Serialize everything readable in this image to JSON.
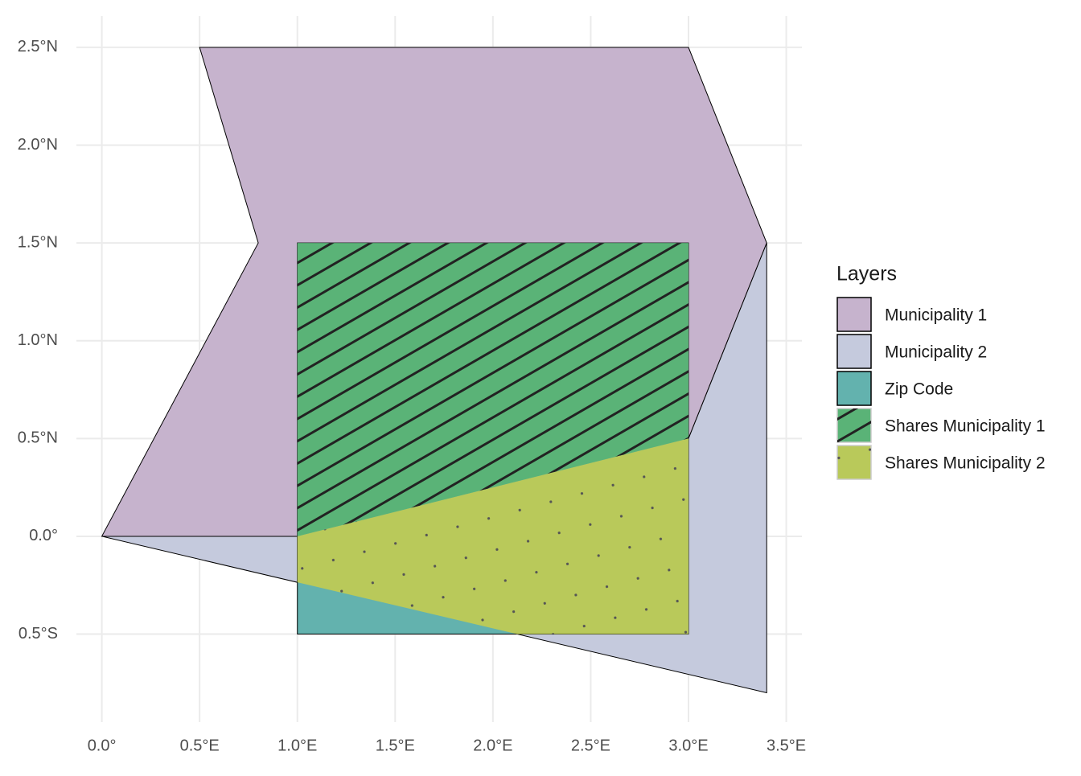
{
  "chart_data": {
    "type": "map",
    "xlim": [
      -0.13,
      3.58
    ],
    "ylim": [
      -0.95,
      2.66
    ],
    "xticks": [
      {
        "value": 0,
        "label": "0.0°"
      },
      {
        "value": 0.5,
        "label": "0.5°E"
      },
      {
        "value": 1,
        "label": "1.0°E"
      },
      {
        "value": 1.5,
        "label": "1.5°E"
      },
      {
        "value": 2,
        "label": "2.0°E"
      },
      {
        "value": 2.5,
        "label": "2.5°E"
      },
      {
        "value": 3,
        "label": "3.0°E"
      },
      {
        "value": 3.5,
        "label": "3.5°E"
      }
    ],
    "yticks": [
      {
        "value": -0.5,
        "label": "0.5°S"
      },
      {
        "value": 0,
        "label": "0.0°"
      },
      {
        "value": 0.5,
        "label": "0.5°N"
      },
      {
        "value": 1,
        "label": "1.0°N"
      },
      {
        "value": 1.5,
        "label": "1.5°N"
      },
      {
        "value": 2,
        "label": "2.0°N"
      },
      {
        "value": 2.5,
        "label": "2.5°N"
      }
    ],
    "grid": true,
    "legend_title": "Layers",
    "series": [
      {
        "name": "Municipality 1",
        "color": "#c6b3cd",
        "pattern": "none",
        "x": [
          0,
          0.8,
          0.5,
          3,
          3.4,
          3,
          1
        ],
        "y": [
          0,
          1.5,
          2.5,
          2.5,
          1.5,
          0.5,
          0
        ]
      },
      {
        "name": "Municipality 2",
        "color": "#c5cadd",
        "pattern": "none",
        "x": [
          0,
          1,
          3,
          3.4,
          3.4
        ],
        "y": [
          0,
          0,
          0.5,
          1.5,
          -0.8
        ]
      },
      {
        "name": "Zip Code",
        "color": "#63b2ae",
        "pattern": "none",
        "x": [
          1,
          3,
          3,
          1
        ],
        "y": [
          -0.5,
          -0.5,
          1.5,
          1.5
        ]
      },
      {
        "name": "Shares Municipality 1",
        "color": "#5ab377",
        "pattern": "stripe",
        "x": [
          1,
          1,
          3,
          3
        ],
        "y": [
          0,
          1.5,
          1.5,
          0.5
        ]
      },
      {
        "name": "Shares Municipality 2",
        "color": "#b9c95a",
        "pattern": "dot",
        "x": [
          1,
          3,
          3,
          2.125,
          1
        ],
        "y": [
          0,
          0.5,
          -0.5,
          -0.5,
          -0.235
        ]
      }
    ]
  }
}
